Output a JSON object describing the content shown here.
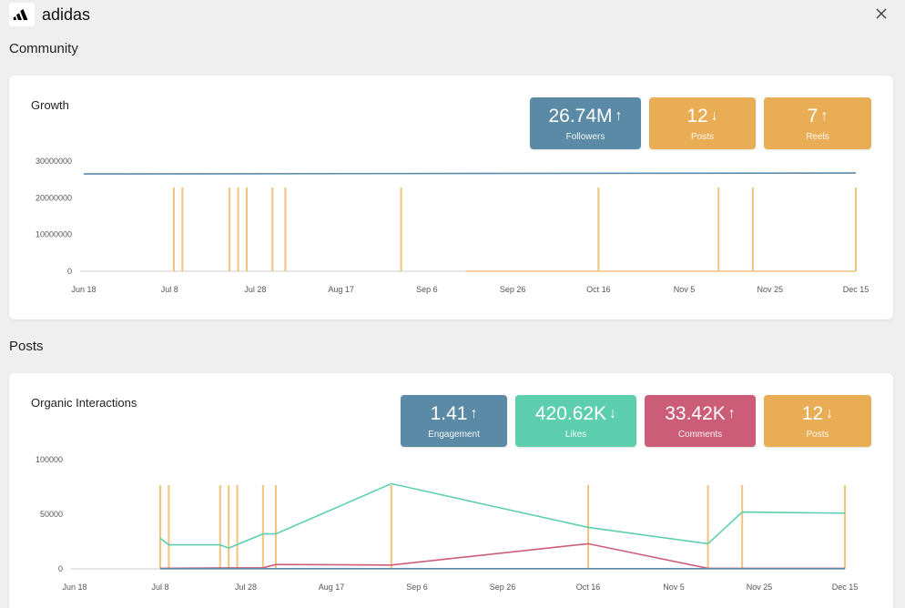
{
  "app": {
    "brand": "adidas",
    "logo_icon": "adidas-logo-icon",
    "close_icon": "close-icon"
  },
  "colors": {
    "blue": "#5b8aa6",
    "orange": "#e9ad55",
    "teal": "#5dcfae",
    "pink": "#cc5d79",
    "line_blue": "#5b8aa6",
    "line_orange": "#f2c37a"
  },
  "community": {
    "title": "Community",
    "growth": {
      "title": "Growth",
      "stats": [
        {
          "value": "26.74M",
          "arrow": "↑",
          "label": "Followers"
        },
        {
          "value": "12",
          "arrow": "↓",
          "label": "Posts"
        },
        {
          "value": "7",
          "arrow": "↑",
          "label": "Reels"
        }
      ],
      "chart_data": {
        "type": "line",
        "x_ticks": [
          "Jun 18",
          "Jul 8",
          "Jul 28",
          "Aug 17",
          "Sep 6",
          "Sep 26",
          "Oct 16",
          "Nov 5",
          "Nov 25",
          "Dec 15"
        ],
        "y_ticks": [
          "30000000",
          "20000000",
          "10000000",
          "0"
        ],
        "ylim": [
          0,
          30000000
        ],
        "xlim": [
          "2023-06-18",
          "2023-12-15"
        ],
        "series": [
          {
            "name": "Followers",
            "points": [
              [
                "2023-06-18",
                26500000
              ],
              [
                "2023-12-15",
                26740000
              ]
            ]
          },
          {
            "name": "Posts",
            "points": [
              [
                "2023-09-15",
                0
              ],
              [
                "2023-12-15",
                0
              ]
            ]
          }
        ],
        "event_dates": [
          "2023-07-09",
          "2023-07-11",
          "2023-07-22",
          "2023-07-24",
          "2023-07-26",
          "2023-08-01",
          "2023-08-04",
          "2023-08-31",
          "2023-10-16",
          "2023-11-13",
          "2023-11-21",
          "2023-12-15"
        ]
      }
    }
  },
  "posts": {
    "title": "Posts",
    "interactions": {
      "title": "Organic Interactions",
      "stats": [
        {
          "value": "1.41",
          "arrow": "↑",
          "label": "Engagement"
        },
        {
          "value": "420.62K",
          "arrow": "↓",
          "label": "Likes"
        },
        {
          "value": "33.42K",
          "arrow": "↑",
          "label": "Comments"
        },
        {
          "value": "12",
          "arrow": "↓",
          "label": "Posts"
        }
      ],
      "chart_data": {
        "type": "line",
        "x_ticks": [
          "Jun 18",
          "Jul 8",
          "Jul 28",
          "Aug 17",
          "Sep 6",
          "Sep 26",
          "Oct 16",
          "Nov 5",
          "Nov 25",
          "Dec 15"
        ],
        "y_ticks": [
          "100000",
          "50000",
          "0"
        ],
        "ylim": [
          0,
          100000
        ],
        "xlim": [
          "2023-06-18",
          "2023-12-15"
        ],
        "series": [
          {
            "name": "Likes",
            "points": [
              [
                "2023-07-08",
                28000
              ],
              [
                "2023-07-10",
                22000
              ],
              [
                "2023-07-22",
                22000
              ],
              [
                "2023-07-24",
                19000
              ],
              [
                "2023-08-01",
                32000
              ],
              [
                "2023-08-04",
                32000
              ],
              [
                "2023-08-31",
                78000
              ],
              [
                "2023-10-16",
                38000
              ],
              [
                "2023-11-13",
                23000
              ],
              [
                "2023-11-21",
                52000
              ],
              [
                "2023-12-15",
                51000
              ]
            ]
          },
          {
            "name": "Comments",
            "points": [
              [
                "2023-07-08",
                500
              ],
              [
                "2023-08-01",
                1000
              ],
              [
                "2023-08-04",
                4000
              ],
              [
                "2023-08-31",
                3500
              ],
              [
                "2023-10-16",
                23000
              ],
              [
                "2023-11-13",
                500
              ],
              [
                "2023-12-15",
                500
              ]
            ]
          },
          {
            "name": "Engagement",
            "points": [
              [
                "2023-07-08",
                200
              ],
              [
                "2023-12-15",
                200
              ]
            ]
          }
        ],
        "event_dates": [
          "2023-07-08",
          "2023-07-10",
          "2023-07-22",
          "2023-07-24",
          "2023-07-26",
          "2023-08-01",
          "2023-08-04",
          "2023-08-31",
          "2023-10-16",
          "2023-11-13",
          "2023-11-21",
          "2023-12-15"
        ]
      }
    }
  }
}
